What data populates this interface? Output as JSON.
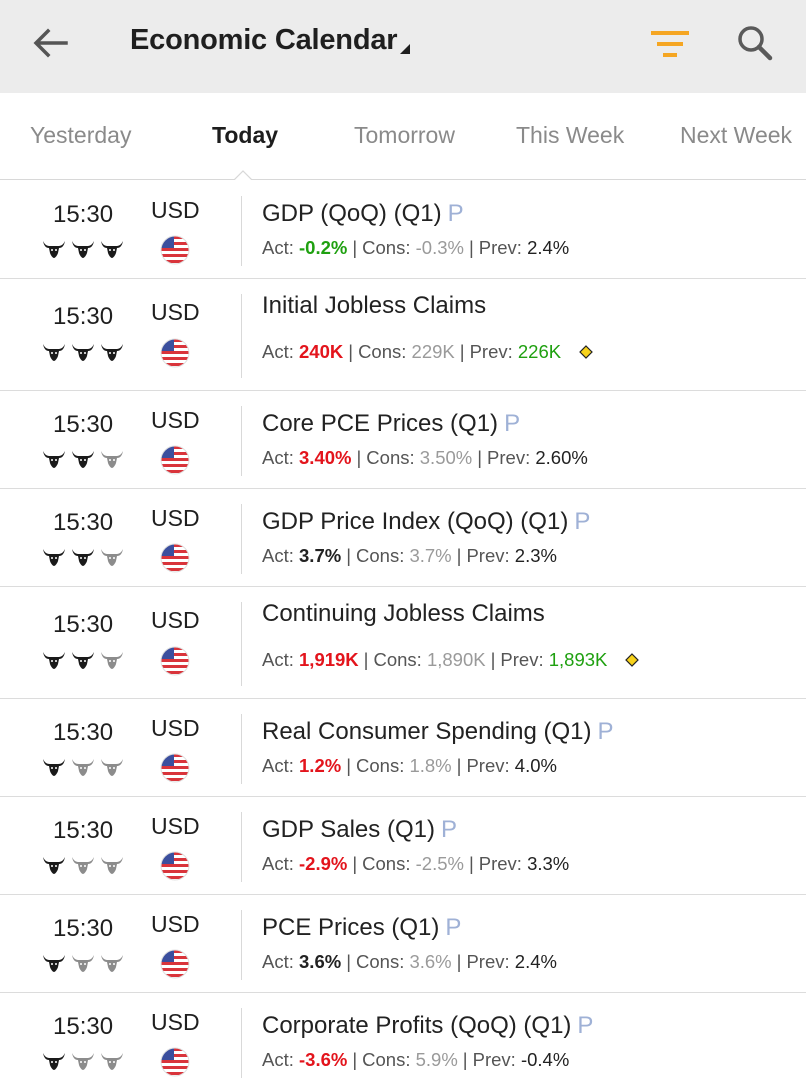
{
  "appbar": {
    "title": "Economic Calendar",
    "accent_color": "#f5a623",
    "icons": [
      "back-arrow-icon",
      "dropdown-caret-icon",
      "filter-icon",
      "search-icon"
    ]
  },
  "tabs": [
    {
      "label": "Yesterday",
      "active": false
    },
    {
      "label": "Today",
      "active": true
    },
    {
      "label": "Tomorrow",
      "active": false
    },
    {
      "label": "This Week",
      "active": false
    },
    {
      "label": "Next Week",
      "active": false
    }
  ],
  "labels": {
    "actual": "Act:",
    "consensus": "Cons:",
    "previous": "Prev:",
    "separator": "|"
  },
  "events": [
    {
      "time": "15:30",
      "currency": "USD",
      "importance": 3,
      "name": "GDP (QoQ) (Q1)",
      "preliminary": "P",
      "actual": "-0.2%",
      "actual_color": "green",
      "consensus": "-0.3%",
      "previous": "2.4%",
      "previous_color": "black",
      "revised": false
    },
    {
      "time": "15:30",
      "currency": "USD",
      "importance": 3,
      "name": "Initial Jobless Claims",
      "preliminary": "",
      "actual": "240K",
      "actual_color": "red",
      "consensus": "229K",
      "previous": "226K",
      "previous_color": "green",
      "revised": true
    },
    {
      "time": "15:30",
      "currency": "USD",
      "importance": 2,
      "name": "Core PCE Prices (Q1)",
      "preliminary": "P",
      "actual": "3.40%",
      "actual_color": "red",
      "consensus": "3.50%",
      "previous": "2.60%",
      "previous_color": "black",
      "revised": false
    },
    {
      "time": "15:30",
      "currency": "USD",
      "importance": 2,
      "name": "GDP Price Index (QoQ) (Q1)",
      "preliminary": "P",
      "actual": "3.7%",
      "actual_color": "black",
      "consensus": "3.7%",
      "previous": "2.3%",
      "previous_color": "black",
      "revised": false
    },
    {
      "time": "15:30",
      "currency": "USD",
      "importance": 2,
      "name": "Continuing Jobless Claims",
      "preliminary": "",
      "actual": "1,919K",
      "actual_color": "red",
      "consensus": "1,890K",
      "previous": "1,893K",
      "previous_color": "green",
      "revised": true
    },
    {
      "time": "15:30",
      "currency": "USD",
      "importance": 1,
      "name": "Real Consumer Spending (Q1)",
      "preliminary": "P",
      "actual": "1.2%",
      "actual_color": "red",
      "consensus": "1.8%",
      "previous": "4.0%",
      "previous_color": "black",
      "revised": false
    },
    {
      "time": "15:30",
      "currency": "USD",
      "importance": 1,
      "name": "GDP Sales (Q1)",
      "preliminary": "P",
      "actual": "-2.9%",
      "actual_color": "red",
      "consensus": "-2.5%",
      "previous": "3.3%",
      "previous_color": "black",
      "revised": false
    },
    {
      "time": "15:30",
      "currency": "USD",
      "importance": 1,
      "name": "PCE Prices (Q1)",
      "preliminary": "P",
      "actual": "3.6%",
      "actual_color": "black",
      "consensus": "3.6%",
      "previous": "2.4%",
      "previous_color": "black",
      "revised": false
    },
    {
      "time": "15:30",
      "currency": "USD",
      "importance": 1,
      "name": "Corporate Profits (QoQ) (Q1)",
      "preliminary": "P",
      "actual": "-3.6%",
      "actual_color": "red",
      "consensus": "5.9%",
      "previous": "-0.4%",
      "previous_color": "black",
      "revised": false
    }
  ]
}
